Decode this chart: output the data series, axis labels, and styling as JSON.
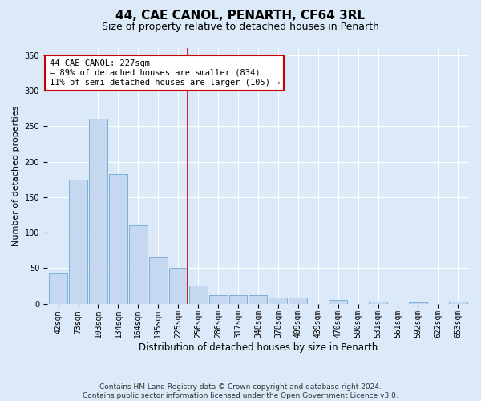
{
  "title": "44, CAE CANOL, PENARTH, CF64 3RL",
  "subtitle": "Size of property relative to detached houses in Penarth",
  "xlabel": "Distribution of detached houses by size in Penarth",
  "ylabel": "Number of detached properties",
  "footer_line1": "Contains HM Land Registry data © Crown copyright and database right 2024.",
  "footer_line2": "Contains public sector information licensed under the Open Government Licence v3.0.",
  "annotation_line1": "44 CAE CANOL: 227sqm",
  "annotation_line2": "← 89% of detached houses are smaller (834)",
  "annotation_line3": "11% of semi-detached houses are larger (105) →",
  "bar_labels": [
    "42sqm",
    "73sqm",
    "103sqm",
    "134sqm",
    "164sqm",
    "195sqm",
    "225sqm",
    "256sqm",
    "286sqm",
    "317sqm",
    "348sqm",
    "378sqm",
    "409sqm",
    "439sqm",
    "470sqm",
    "500sqm",
    "531sqm",
    "561sqm",
    "592sqm",
    "622sqm",
    "653sqm"
  ],
  "bar_values": [
    43,
    175,
    260,
    183,
    110,
    65,
    50,
    25,
    12,
    12,
    12,
    8,
    8,
    0,
    5,
    0,
    3,
    0,
    2,
    0,
    3
  ],
  "bar_color": "#c5d8f0",
  "bar_edge_color": "#6fa8d6",
  "vline_x": 6,
  "vline_color": "#cc0000",
  "bg_color": "#dce9f8",
  "plot_bg_color": "#dce9f8",
  "annotation_box_color": "#ffffff",
  "annotation_box_edge": "#cc0000",
  "ylim": [
    0,
    360
  ],
  "title_fontsize": 11,
  "subtitle_fontsize": 9,
  "xlabel_fontsize": 8.5,
  "ylabel_fontsize": 8,
  "tick_fontsize": 7,
  "annotation_fontsize": 7.5,
  "footer_fontsize": 6.5
}
